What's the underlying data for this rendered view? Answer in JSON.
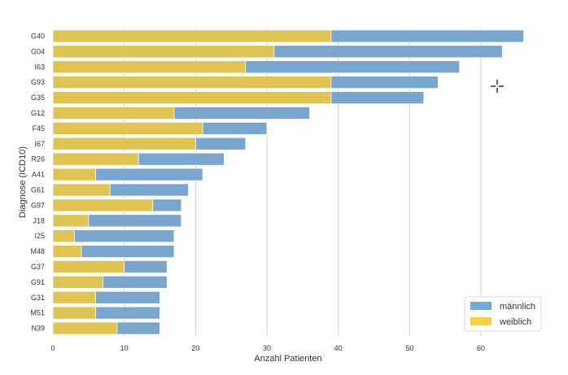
{
  "chart_data": {
    "type": "bar",
    "orientation": "horizontal",
    "stacked": true,
    "title": "",
    "xlabel": "Anzahl Patienten",
    "ylabel": "Diagnose (ICD10)",
    "xlim": [
      0,
      67
    ],
    "xticks": [
      0,
      10,
      20,
      30,
      40,
      50,
      60
    ],
    "grid": true,
    "legend_position": "bottom-right",
    "categories": [
      "G40",
      "G04",
      "I63",
      "G93",
      "G35",
      "G12",
      "F45",
      "I67",
      "R26",
      "A41",
      "G61",
      "G97",
      "J18",
      "I25",
      "M48",
      "G37",
      "G91",
      "G31",
      "M51",
      "N39"
    ],
    "series": [
      {
        "name": "männlich",
        "color": "#79a6cf",
        "legend_color": "#6fa8dc",
        "note": "total bar length",
        "values": [
          66,
          63,
          57,
          54,
          52,
          36,
          30,
          27,
          24,
          21,
          19,
          18,
          18,
          17,
          17,
          16,
          16,
          15,
          15,
          15
        ]
      },
      {
        "name": "weiblich",
        "color": "#e1c352",
        "legend_color": "#f9cf3a",
        "note": "overlay bar length",
        "values": [
          39,
          31,
          27,
          39,
          39,
          17,
          21,
          20,
          12,
          6,
          8,
          14,
          5,
          3,
          4,
          10,
          7,
          6,
          6,
          9
        ]
      }
    ]
  },
  "cursor": {
    "icon": "crosshair-icon"
  }
}
